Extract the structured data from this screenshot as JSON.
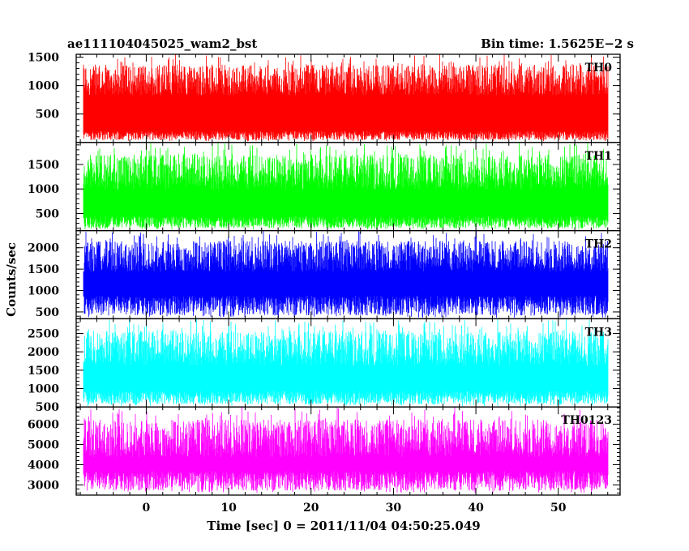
{
  "header": {
    "title": "ae111104045025_wam2_bst",
    "bin_time": "Bin time: 1.5625E−2 s"
  },
  "chart_data": {
    "type": "line",
    "xlabel": "Time [sec] 0 = 2011/11/04 04:50:25.049",
    "ylabel": "Counts/sec",
    "xlim": [
      -8.5,
      57.5
    ],
    "x_ticks": [
      0,
      10,
      20,
      30,
      40,
      50
    ],
    "x_range_data": [
      -7.6,
      56.0
    ],
    "panels": [
      {
        "name": "TH0",
        "color": "#ff0000",
        "ylim": [
          0,
          1550
        ],
        "ticks": [
          500,
          1000,
          1500
        ],
        "typical": [
          120,
          1100
        ],
        "extremes": [
          20,
          1550
        ]
      },
      {
        "name": "TH1",
        "color": "#00ff00",
        "ylim": [
          150,
          1950
        ],
        "ticks": [
          500,
          1000,
          1500
        ],
        "typical": [
          320,
          1350
        ],
        "extremes": [
          170,
          1950
        ]
      },
      {
        "name": "TH2",
        "color": "#0000ff",
        "ylim": [
          340,
          2400
        ],
        "ticks": [
          500,
          1000,
          1500,
          2000
        ],
        "typical": [
          650,
          1800
        ],
        "extremes": [
          360,
          2400
        ]
      },
      {
        "name": "TH3",
        "color": "#00ffff",
        "ylim": [
          500,
          2900
        ],
        "ticks": [
          500,
          1000,
          1500,
          2000,
          2500
        ],
        "typical": [
          750,
          2100
        ],
        "extremes": [
          520,
          2900
        ]
      },
      {
        "name": "TH0123",
        "color": "#ff00ff",
        "ylim": [
          2500,
          6850
        ],
        "ticks": [
          3000,
          4000,
          5000,
          6000
        ],
        "typical": [
          3200,
          5300
        ],
        "extremes": [
          2600,
          6850
        ]
      }
    ]
  }
}
